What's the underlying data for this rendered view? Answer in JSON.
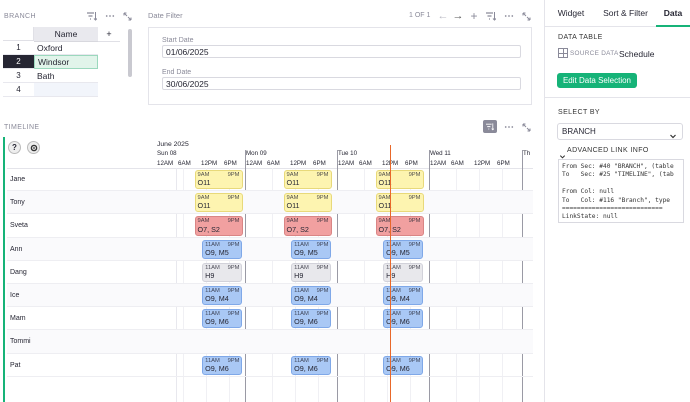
{
  "branch_widget": {
    "title": "BRANCH",
    "column_header": "Name",
    "add_column": "+",
    "rows": [
      {
        "num": "1",
        "name": "Oxford"
      },
      {
        "num": "2",
        "name": "Windsor"
      },
      {
        "num": "3",
        "name": "Bath"
      },
      {
        "num": "4",
        "name": ""
      }
    ],
    "selected_row": 2
  },
  "date_filter": {
    "title": "Date Filter",
    "pager": "1 OF 1",
    "start_label": "Start Date",
    "start_value": "01/06/2025",
    "end_label": "End Date",
    "end_value": "30/06/2025"
  },
  "timeline": {
    "title": "TIMELINE",
    "month": "June 2025",
    "days": [
      "Sun 08",
      "Mon 09",
      "Tue 10",
      "Wed 11",
      "Th"
    ],
    "hours": [
      "12AM",
      "6AM",
      "12PM",
      "6PM"
    ],
    "employees": [
      "Jane",
      "Tony",
      "Sveta",
      "Ann",
      "Dang",
      "Ice",
      "Mam",
      "Tommi",
      "Pat"
    ],
    "shifts": [
      {
        "row": 0,
        "day": 0,
        "start": "9AM",
        "end": "9PM",
        "label": "O11",
        "color": "yellow"
      },
      {
        "row": 0,
        "day": 1,
        "start": "9AM",
        "end": "9PM",
        "label": "O11",
        "color": "yellow"
      },
      {
        "row": 0,
        "day": 2,
        "start": "9AM",
        "end": "9PM",
        "label": "O11",
        "color": "yellow"
      },
      {
        "row": 1,
        "day": 0,
        "start": "9AM",
        "end": "9PM",
        "label": "O11",
        "color": "yellow"
      },
      {
        "row": 1,
        "day": 1,
        "start": "9AM",
        "end": "9PM",
        "label": "O11",
        "color": "yellow"
      },
      {
        "row": 1,
        "day": 2,
        "start": "9AM",
        "end": "9PM",
        "label": "O11",
        "color": "yellow"
      },
      {
        "row": 2,
        "day": 0,
        "start": "9AM",
        "end": "9PM",
        "label": "O7, S2",
        "color": "red"
      },
      {
        "row": 2,
        "day": 1,
        "start": "9AM",
        "end": "9PM",
        "label": "O7, S2",
        "color": "red"
      },
      {
        "row": 2,
        "day": 2,
        "start": "9AM",
        "end": "9PM",
        "label": "O7, S2",
        "color": "red"
      },
      {
        "row": 3,
        "day": 0,
        "start": "11AM",
        "end": "9PM",
        "label": "O9, M5",
        "color": "blue"
      },
      {
        "row": 3,
        "day": 1,
        "start": "11AM",
        "end": "9PM",
        "label": "O9, M5",
        "color": "blue"
      },
      {
        "row": 3,
        "day": 2,
        "start": "11AM",
        "end": "9PM",
        "label": "O9, M5",
        "color": "blue"
      },
      {
        "row": 4,
        "day": 0,
        "start": "11AM",
        "end": "9PM",
        "label": "H9",
        "color": "gray"
      },
      {
        "row": 4,
        "day": 1,
        "start": "11AM",
        "end": "9PM",
        "label": "H9",
        "color": "gray"
      },
      {
        "row": 4,
        "day": 2,
        "start": "11AM",
        "end": "9PM",
        "label": "H9",
        "color": "gray"
      },
      {
        "row": 5,
        "day": 0,
        "start": "11AM",
        "end": "9PM",
        "label": "O9, M4",
        "color": "blue"
      },
      {
        "row": 5,
        "day": 1,
        "start": "11AM",
        "end": "9PM",
        "label": "O9, M4",
        "color": "blue"
      },
      {
        "row": 5,
        "day": 2,
        "start": "11AM",
        "end": "9PM",
        "label": "O9, M4",
        "color": "blue"
      },
      {
        "row": 6,
        "day": 0,
        "start": "11AM",
        "end": "9PM",
        "label": "O9, M6",
        "color": "blue"
      },
      {
        "row": 6,
        "day": 1,
        "start": "11AM",
        "end": "9PM",
        "label": "O9, M6",
        "color": "blue"
      },
      {
        "row": 6,
        "day": 2,
        "start": "11AM",
        "end": "9PM",
        "label": "O9, M6",
        "color": "blue"
      },
      {
        "row": 8,
        "day": 0,
        "start": "11AM",
        "end": "9PM",
        "label": "O9, M6",
        "color": "blue"
      },
      {
        "row": 8,
        "day": 1,
        "start": "11AM",
        "end": "9PM",
        "label": "O9, M6",
        "color": "blue"
      },
      {
        "row": 8,
        "day": 2,
        "start": "11AM",
        "end": "9PM",
        "label": "O9, M6",
        "color": "blue"
      }
    ]
  },
  "right_panel": {
    "tabs": [
      "Widget",
      "Sort & Filter",
      "Data"
    ],
    "active_tab": "Data",
    "data_table_label": "DATA TABLE",
    "source_data_label": "SOURCE DATA",
    "table_name": "Schedule",
    "edit_button": "Edit Data Selection",
    "select_by_label": "SELECT BY",
    "select_by_value": "BRANCH",
    "advanced_label": "ADVANCED LINK INFO",
    "link_info_lines": [
      "From Sec: #40 \"BRANCH\", (table",
      "To   Sec: #25 \"TIMELINE\", (tab",
      "",
      "From Col: null",
      "To   Col: #116 \"Branch\", type",
      "===========================",
      "LinkState: null"
    ]
  },
  "colors": {
    "green": "#16b378",
    "now_line": "#e8682a",
    "yellow": "#fdf4b0",
    "red": "#f1a0a0",
    "blue": "#a9c8f5",
    "gray": "#e8e8ec"
  }
}
